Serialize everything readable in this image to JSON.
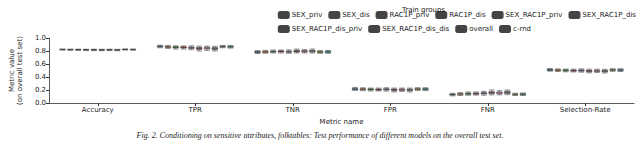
{
  "chart_data": {
    "type": "boxplot",
    "title": "Fig. 2. Conditioning on sensitive attributes, folktables: Test performance of different models on the overall test set.",
    "legend_title": "Train groups",
    "x_label": "Metric name",
    "y_label": "Metric value\n(on overall test set)",
    "categories": [
      "Accuracy",
      "TPR",
      "TNR",
      "FPR",
      "FNR",
      "Selection-Rate"
    ],
    "ylim": [
      0,
      1
    ],
    "yticks": [
      {
        "value": 0,
        "label": "0.0"
      },
      {
        "value": 0.2,
        "label": "0.2"
      },
      {
        "value": 0.4,
        "label": "0.4"
      },
      {
        "value": 0.6,
        "label": "0.6"
      },
      {
        "value": 0.8,
        "label": "0.8"
      },
      {
        "value": 1,
        "label": "1.0"
      }
    ],
    "grid": false,
    "legend": "top",
    "series": [
      {
        "name": "SEX_priv",
        "color": "#1f77b4",
        "values": [
          [
            0.815,
            0.82,
            0.823,
            0.826,
            0.83
          ],
          [
            0.85,
            0.862,
            0.87,
            0.878,
            0.89
          ],
          [
            0.76,
            0.775,
            0.785,
            0.795,
            0.805
          ],
          [
            0.195,
            0.205,
            0.215,
            0.225,
            0.24
          ],
          [
            0.11,
            0.122,
            0.13,
            0.138,
            0.15
          ],
          [
            0.49,
            0.5,
            0.51,
            0.518,
            0.53
          ]
        ]
      },
      {
        "name": "SEX_dis",
        "color": "#ff7f0e",
        "values": [
          [
            0.812,
            0.818,
            0.821,
            0.824,
            0.829
          ],
          [
            0.84,
            0.855,
            0.862,
            0.87,
            0.885
          ],
          [
            0.765,
            0.778,
            0.788,
            0.797,
            0.81
          ],
          [
            0.19,
            0.203,
            0.212,
            0.222,
            0.235
          ],
          [
            0.115,
            0.13,
            0.138,
            0.145,
            0.16
          ],
          [
            0.485,
            0.497,
            0.505,
            0.513,
            0.525
          ]
        ]
      },
      {
        "name": "RAC1P_priv",
        "color": "#2ca02c",
        "values": [
          [
            0.81,
            0.817,
            0.82,
            0.823,
            0.828
          ],
          [
            0.83,
            0.848,
            0.858,
            0.866,
            0.88
          ],
          [
            0.77,
            0.782,
            0.792,
            0.8,
            0.815
          ],
          [
            0.185,
            0.2,
            0.208,
            0.218,
            0.23
          ],
          [
            0.12,
            0.134,
            0.142,
            0.152,
            0.17
          ],
          [
            0.48,
            0.493,
            0.502,
            0.51,
            0.522
          ]
        ]
      },
      {
        "name": "RAC1P_dis",
        "color": "#d62728",
        "values": [
          [
            0.808,
            0.815,
            0.819,
            0.822,
            0.827
          ],
          [
            0.83,
            0.845,
            0.855,
            0.865,
            0.878
          ],
          [
            0.77,
            0.783,
            0.793,
            0.802,
            0.815
          ],
          [
            0.185,
            0.198,
            0.207,
            0.217,
            0.23
          ],
          [
            0.122,
            0.135,
            0.145,
            0.155,
            0.17
          ],
          [
            0.478,
            0.49,
            0.5,
            0.508,
            0.52
          ]
        ]
      },
      {
        "name": "SEX_RAC1P_priv",
        "color": "#9467bd",
        "values": [
          [
            0.806,
            0.814,
            0.818,
            0.822,
            0.828
          ],
          [
            0.82,
            0.84,
            0.85,
            0.862,
            0.88
          ],
          [
            0.765,
            0.78,
            0.79,
            0.8,
            0.818
          ],
          [
            0.182,
            0.2,
            0.21,
            0.22,
            0.235
          ],
          [
            0.12,
            0.138,
            0.15,
            0.16,
            0.18
          ],
          [
            0.475,
            0.49,
            0.5,
            0.51,
            0.525
          ]
        ]
      },
      {
        "name": "SEX_RAC1P_dis",
        "color": "#8c564b",
        "values": [
          [
            0.805,
            0.813,
            0.817,
            0.821,
            0.827
          ],
          [
            0.8,
            0.825,
            0.84,
            0.855,
            0.875
          ],
          [
            0.77,
            0.785,
            0.797,
            0.81,
            0.83
          ],
          [
            0.17,
            0.19,
            0.203,
            0.215,
            0.23
          ],
          [
            0.125,
            0.145,
            0.16,
            0.175,
            0.2
          ],
          [
            0.465,
            0.48,
            0.492,
            0.503,
            0.52
          ]
        ]
      },
      {
        "name": "SEX_RAC1P_dis_priv",
        "color": "#e377c2",
        "values": [
          [
            0.807,
            0.814,
            0.818,
            0.822,
            0.828
          ],
          [
            0.81,
            0.83,
            0.845,
            0.858,
            0.875
          ],
          [
            0.77,
            0.783,
            0.795,
            0.806,
            0.822
          ],
          [
            0.178,
            0.194,
            0.205,
            0.217,
            0.23
          ],
          [
            0.125,
            0.142,
            0.155,
            0.17,
            0.19
          ],
          [
            0.47,
            0.485,
            0.495,
            0.505,
            0.52
          ]
        ]
      },
      {
        "name": "SEX_RAC1P_dis_dis",
        "color": "#7f7f7f",
        "values": [
          [
            0.804,
            0.812,
            0.816,
            0.82,
            0.826
          ],
          [
            0.8,
            0.82,
            0.838,
            0.855,
            0.872
          ],
          [
            0.77,
            0.785,
            0.798,
            0.812,
            0.83
          ],
          [
            0.17,
            0.188,
            0.202,
            0.215,
            0.23
          ],
          [
            0.128,
            0.145,
            0.162,
            0.18,
            0.2
          ],
          [
            0.462,
            0.478,
            0.49,
            0.502,
            0.518
          ]
        ]
      },
      {
        "name": "overall",
        "color": "#bcbd22",
        "values": [
          [
            0.816,
            0.821,
            0.824,
            0.827,
            0.831
          ],
          [
            0.85,
            0.86,
            0.867,
            0.874,
            0.885
          ],
          [
            0.765,
            0.776,
            0.786,
            0.795,
            0.806
          ],
          [
            0.194,
            0.205,
            0.214,
            0.224,
            0.235
          ],
          [
            0.115,
            0.126,
            0.133,
            0.14,
            0.15
          ],
          [
            0.488,
            0.499,
            0.508,
            0.516,
            0.528
          ]
        ]
      },
      {
        "name": "c-rnd",
        "color": "#17becf",
        "values": [
          [
            0.814,
            0.819,
            0.822,
            0.825,
            0.83
          ],
          [
            0.845,
            0.857,
            0.865,
            0.873,
            0.885
          ],
          [
            0.765,
            0.777,
            0.787,
            0.797,
            0.808
          ],
          [
            0.192,
            0.203,
            0.213,
            0.223,
            0.235
          ],
          [
            0.115,
            0.127,
            0.135,
            0.143,
            0.155
          ],
          [
            0.485,
            0.497,
            0.506,
            0.515,
            0.527
          ]
        ]
      }
    ]
  }
}
